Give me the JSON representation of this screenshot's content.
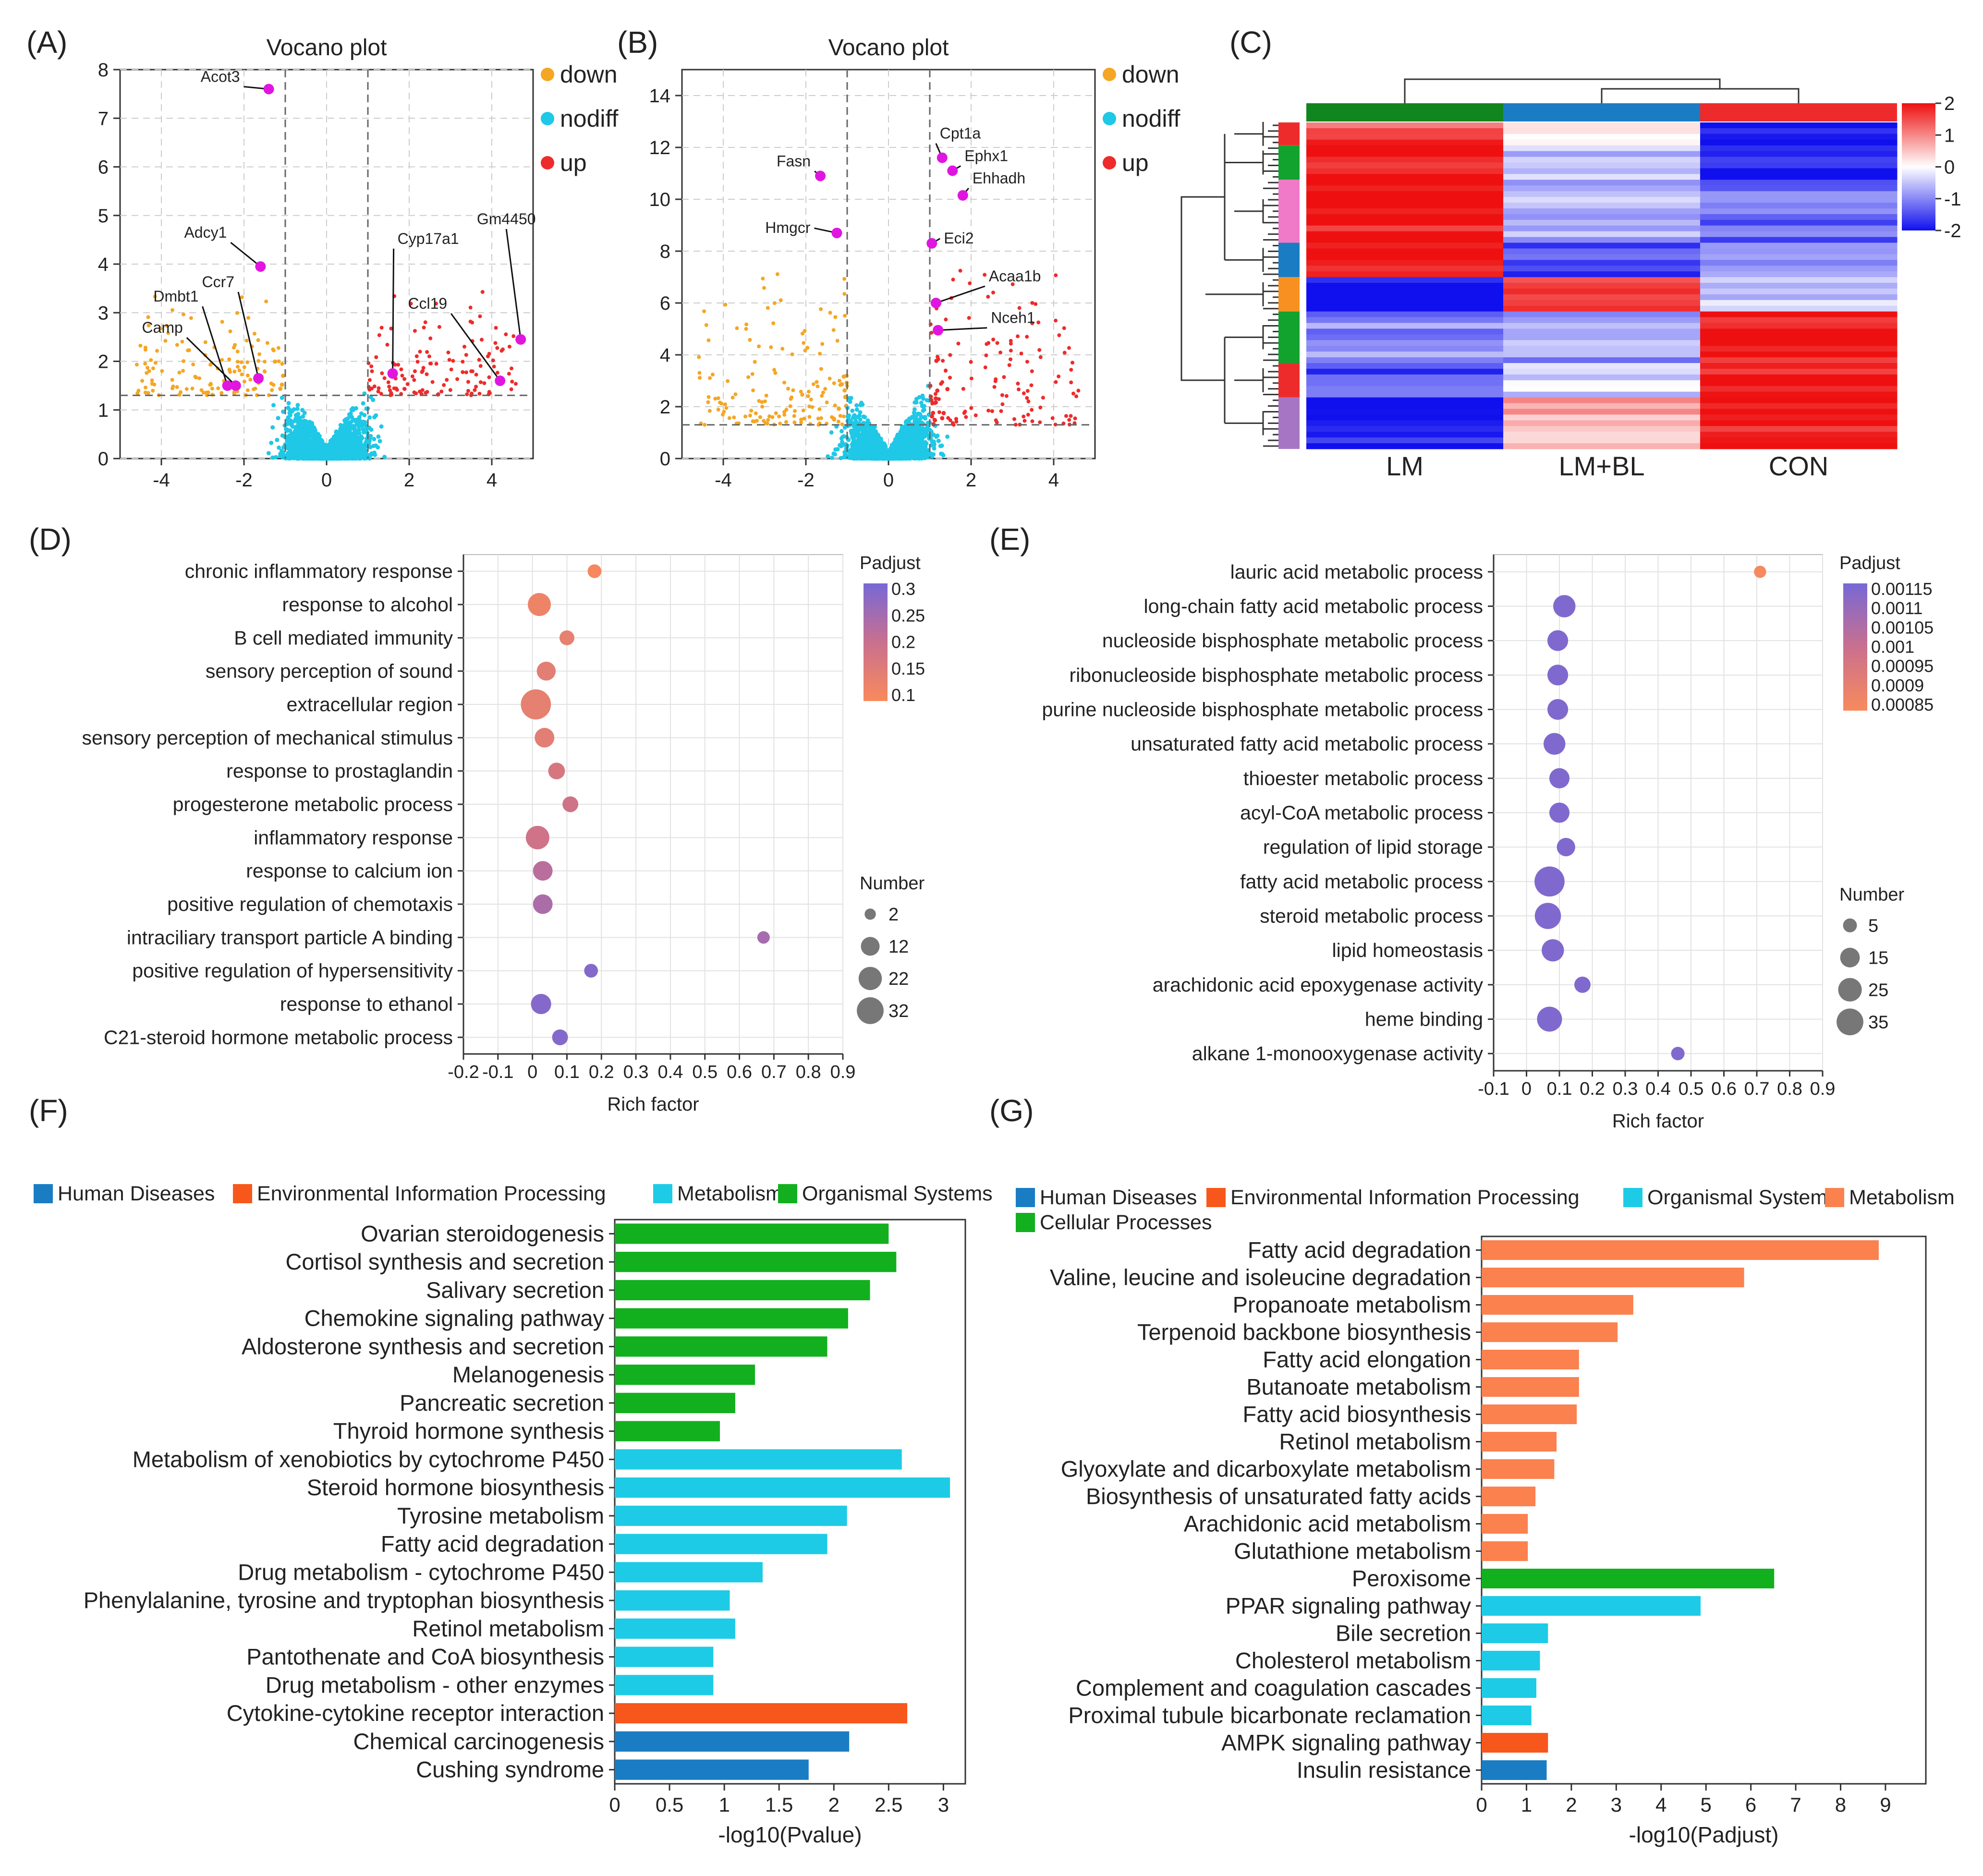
{
  "colors": {
    "down": "#f5a623",
    "nodiff": "#1ec8e6",
    "up": "#ee2b2b",
    "highlight": "#e016e0",
    "human": "#1a7dc4",
    "env": "#f8571c",
    "metab_f": "#1ecbe6",
    "org_f": "#12b01e",
    "metab_g": "#fb814e",
    "org_g": "#1ecbe6",
    "cell_g": "#12b01e",
    "dotLow": "#f98a5c",
    "dotMid": "#c9708e",
    "dotHigh": "#7768d6"
  },
  "panels": {
    "A": "(A)",
    "B": "(B)",
    "C": "(C)",
    "D": "(D)",
    "E": "(E)",
    "F": "(F)",
    "G": "(G)"
  },
  "chart_data": [
    {
      "id": "A",
      "type": "scatter",
      "title": "Vocano plot",
      "xlim": [
        -5,
        5
      ],
      "ylim": [
        0,
        8
      ],
      "xticks": [
        "-4",
        "-2",
        "0",
        "2",
        "4"
      ],
      "yticks": [
        "0",
        "1",
        "2",
        "3",
        "4",
        "5",
        "6",
        "7",
        "8"
      ],
      "vlines": [
        -1,
        1
      ],
      "hline": 1.3,
      "legend": [
        "down",
        "nodiff",
        "up"
      ],
      "genes": [
        {
          "label": "Acot3",
          "x": -1.4,
          "y": 7.6
        },
        {
          "label": "Adcy1",
          "x": -1.6,
          "y": 3.95
        },
        {
          "label": "Dmbt1",
          "x": -2.4,
          "y": 1.5
        },
        {
          "label": "Ccr7",
          "x": -1.65,
          "y": 1.65
        },
        {
          "label": "Camp",
          "x": -2.2,
          "y": 1.5
        },
        {
          "label": "Cyp17a1",
          "x": 1.6,
          "y": 1.75
        },
        {
          "label": "Ccl19",
          "x": 4.2,
          "y": 1.6
        },
        {
          "label": "Gm4450",
          "x": 4.7,
          "y": 2.45
        }
      ]
    },
    {
      "id": "B",
      "type": "scatter",
      "title": "Vocano plot",
      "xlim": [
        -5,
        5
      ],
      "ylim": [
        0,
        15
      ],
      "xticks": [
        "-4",
        "-2",
        "0",
        "2",
        "4"
      ],
      "yticks": [
        "0",
        "2",
        "4",
        "6",
        "8",
        "10",
        "12",
        "14"
      ],
      "vlines": [
        -1,
        1
      ],
      "hline": 1.3,
      "legend": [
        "down",
        "nodiff",
        "up"
      ],
      "genes": [
        {
          "label": "Fasn",
          "x": -1.65,
          "y": 10.9
        },
        {
          "label": "Hmgcr",
          "x": -1.25,
          "y": 8.7
        },
        {
          "label": "Cpt1a",
          "x": 1.3,
          "y": 11.6
        },
        {
          "label": "Ephx1",
          "x": 1.55,
          "y": 11.1
        },
        {
          "label": "Ehhadh",
          "x": 1.8,
          "y": 10.15
        },
        {
          "label": "Eci2",
          "x": 1.05,
          "y": 8.3
        },
        {
          "label": "Acaa1b",
          "x": 1.15,
          "y": 6.0
        },
        {
          "label": "Nceh1",
          "x": 1.2,
          "y": 4.95
        }
      ]
    },
    {
      "id": "C",
      "type": "heatmap",
      "columns": [
        "LM",
        "LM+BL",
        "CON"
      ],
      "scale_ticks": [
        "2",
        "1",
        "0",
        "-1",
        "-2"
      ],
      "blocks": [
        {
          "n": 4,
          "values": [
            1.5,
            -0.2,
            -2
          ],
          "cluster": "#ee2b2b"
        },
        {
          "n": 6,
          "values": [
            1.8,
            -0.4,
            -2
          ],
          "cluster": "#12a22e"
        },
        {
          "n": 11,
          "values": [
            2,
            -0.7,
            -1.3
          ],
          "cluster": "#f07ac8"
        },
        {
          "n": 6,
          "values": [
            2,
            -1.6,
            -0.8
          ],
          "cluster": "#1a7dc4"
        },
        {
          "n": 6,
          "values": [
            -2,
            1.6,
            -0.3
          ],
          "cluster": "#f79020"
        },
        {
          "n": 9,
          "values": [
            -1,
            -0.8,
            2
          ],
          "cluster": "#12a22e"
        },
        {
          "n": 6,
          "values": [
            -1.4,
            -0.4,
            2
          ],
          "cluster": "#ee2b2b"
        },
        {
          "n": 9,
          "values": [
            -1.9,
            0.6,
            2
          ],
          "cluster": "#a676c4"
        }
      ]
    },
    {
      "id": "D",
      "type": "scatter",
      "xlabel": "Rich factor",
      "xlim": [
        -0.2,
        0.9
      ],
      "xticks": [
        "-0.2",
        "-0.1",
        "0",
        "0.1",
        "0.2",
        "0.3",
        "0.4",
        "0.5",
        "0.6",
        "0.7",
        "0.8",
        "0.9"
      ],
      "legend_color_title": "Padjust",
      "color_ticks": [
        "0.3",
        "0.25",
        "0.2",
        "0.15",
        "0.1"
      ],
      "color_range": [
        0.07,
        0.32
      ],
      "legend_size_title": "Number",
      "size_ticks": [
        "2",
        "12",
        "22",
        "32"
      ],
      "size_values": [
        2,
        12,
        22,
        32
      ],
      "terms": [
        {
          "label": "chronic inflammatory response",
          "x": 0.18,
          "n": 3,
          "p": 0.08
        },
        {
          "label": "response to alcohol",
          "x": 0.02,
          "n": 16,
          "p": 0.1
        },
        {
          "label": "B cell mediated immunity",
          "x": 0.1,
          "n": 4,
          "p": 0.12
        },
        {
          "label": "sensory perception of sound",
          "x": 0.04,
          "n": 9,
          "p": 0.13
        },
        {
          "label": "extracellular region",
          "x": 0.01,
          "n": 33,
          "p": 0.12
        },
        {
          "label": "sensory perception of mechanical stimulus",
          "x": 0.035,
          "n": 10,
          "p": 0.13
        },
        {
          "label": "response to prostaglandin",
          "x": 0.07,
          "n": 6,
          "p": 0.16
        },
        {
          "label": "progesterone metabolic process",
          "x": 0.11,
          "n": 5,
          "p": 0.18
        },
        {
          "label": "inflammatory response",
          "x": 0.015,
          "n": 17,
          "p": 0.18
        },
        {
          "label": "response to calcium ion",
          "x": 0.03,
          "n": 10,
          "p": 0.22
        },
        {
          "label": "positive regulation of chemotaxis",
          "x": 0.03,
          "n": 10,
          "p": 0.24
        },
        {
          "label": "intraciliary transport particle A binding",
          "x": 0.67,
          "n": 2,
          "p": 0.25
        },
        {
          "label": "positive regulation of hypersensitivity",
          "x": 0.17,
          "n": 3,
          "p": 0.3
        },
        {
          "label": "response to ethanol",
          "x": 0.025,
          "n": 11,
          "p": 0.3
        },
        {
          "label": "C21-steroid hormone metabolic process",
          "x": 0.08,
          "n": 5,
          "p": 0.3
        }
      ]
    },
    {
      "id": "E",
      "type": "scatter",
      "xlabel": "Rich factor",
      "xlim": [
        -0.1,
        0.9
      ],
      "xticks": [
        "-0.1",
        "0",
        "0.1",
        "0.2",
        "0.3",
        "0.4",
        "0.5",
        "0.6",
        "0.7",
        "0.8",
        "0.9"
      ],
      "legend_color_title": "Padjust",
      "color_ticks": [
        "0.00115",
        "0.0011",
        "0.00105",
        "0.001",
        "0.00095",
        "0.0009",
        "0.00085"
      ],
      "color_range": [
        0.00082,
        0.00118
      ],
      "legend_size_title": "Number",
      "size_ticks": [
        "5",
        "15",
        "25",
        "35"
      ],
      "size_values": [
        5,
        15,
        25,
        35
      ],
      "terms": [
        {
          "label": "lauric acid metabolic process",
          "x": 0.71,
          "n": 2,
          "p": 0.00083
        },
        {
          "label": "long-chain fatty acid metabolic process",
          "x": 0.115,
          "n": 16,
          "p": 0.00116
        },
        {
          "label": "nucleoside bisphosphate metabolic process",
          "x": 0.095,
          "n": 13,
          "p": 0.00116
        },
        {
          "label": "ribonucleoside bisphosphate metabolic process",
          "x": 0.095,
          "n": 13,
          "p": 0.00116
        },
        {
          "label": "purine nucleoside bisphosphate metabolic process",
          "x": 0.095,
          "n": 13,
          "p": 0.00116
        },
        {
          "label": "unsaturated fatty acid metabolic process",
          "x": 0.085,
          "n": 15,
          "p": 0.00116
        },
        {
          "label": "thioester metabolic process",
          "x": 0.1,
          "n": 12,
          "p": 0.00116
        },
        {
          "label": "acyl-CoA metabolic process",
          "x": 0.1,
          "n": 12,
          "p": 0.00116
        },
        {
          "label": "regulation of lipid storage",
          "x": 0.12,
          "n": 9,
          "p": 0.00116
        },
        {
          "label": "fatty acid metabolic process",
          "x": 0.07,
          "n": 36,
          "p": 0.00116
        },
        {
          "label": "steroid metabolic process",
          "x": 0.065,
          "n": 25,
          "p": 0.00116
        },
        {
          "label": "lipid homeostasis",
          "x": 0.08,
          "n": 16,
          "p": 0.00116
        },
        {
          "label": "arachidonic acid epoxygenase activity",
          "x": 0.17,
          "n": 6,
          "p": 0.00116
        },
        {
          "label": "heme binding",
          "x": 0.07,
          "n": 22,
          "p": 0.00116
        },
        {
          "label": "alkane 1-monooxygenase activity",
          "x": 0.46,
          "n": 3,
          "p": 0.00116
        }
      ]
    },
    {
      "id": "F",
      "type": "bar",
      "orientation": "horizontal",
      "xlabel": "-log10(Pvalue)",
      "xlim": [
        0,
        3.2
      ],
      "xticks": [
        "0",
        "0.5",
        "1",
        "1.5",
        "2",
        "2.5",
        "3"
      ],
      "legend": [
        {
          "label": "Human Diseases",
          "color": "#1a7dc4"
        },
        {
          "label": "Environmental Information Processing",
          "color": "#f8571c"
        },
        {
          "label": "Metabolism",
          "color": "#1ecbe6"
        },
        {
          "label": "Organismal Systems",
          "color": "#12b01e"
        }
      ],
      "bars": [
        {
          "label": "Ovarian steroidogenesis",
          "value": 2.5,
          "color": "#12b01e"
        },
        {
          "label": "Cortisol synthesis and secretion",
          "value": 2.57,
          "color": "#12b01e"
        },
        {
          "label": "Salivary secretion",
          "value": 2.33,
          "color": "#12b01e"
        },
        {
          "label": "Chemokine signaling pathway",
          "value": 2.13,
          "color": "#12b01e"
        },
        {
          "label": "Aldosterone synthesis and secretion",
          "value": 1.94,
          "color": "#12b01e"
        },
        {
          "label": "Melanogenesis",
          "value": 1.28,
          "color": "#12b01e"
        },
        {
          "label": "Pancreatic secretion",
          "value": 1.1,
          "color": "#12b01e"
        },
        {
          "label": "Thyroid hormone synthesis",
          "value": 0.96,
          "color": "#12b01e"
        },
        {
          "label": "Metabolism of xenobiotics by cytochrome P450",
          "value": 2.62,
          "color": "#1ecbe6"
        },
        {
          "label": "Steroid hormone biosynthesis",
          "value": 3.06,
          "color": "#1ecbe6"
        },
        {
          "label": "Tyrosine metabolism",
          "value": 2.12,
          "color": "#1ecbe6"
        },
        {
          "label": "Fatty acid degradation",
          "value": 1.94,
          "color": "#1ecbe6"
        },
        {
          "label": "Drug metabolism - cytochrome P450",
          "value": 1.35,
          "color": "#1ecbe6"
        },
        {
          "label": "Phenylalanine, tyrosine and tryptophan biosynthesis",
          "value": 1.05,
          "color": "#1ecbe6"
        },
        {
          "label": "Retinol metabolism",
          "value": 1.1,
          "color": "#1ecbe6"
        },
        {
          "label": "Pantothenate and CoA biosynthesis",
          "value": 0.9,
          "color": "#1ecbe6"
        },
        {
          "label": "Drug metabolism - other enzymes",
          "value": 0.9,
          "color": "#1ecbe6"
        },
        {
          "label": "Cytokine-cytokine receptor interaction",
          "value": 2.67,
          "color": "#f8571c"
        },
        {
          "label": "Chemical carcinogenesis",
          "value": 2.14,
          "color": "#1a7dc4"
        },
        {
          "label": "Cushing syndrome",
          "value": 1.77,
          "color": "#1a7dc4"
        }
      ]
    },
    {
      "id": "G",
      "type": "bar",
      "orientation": "horizontal",
      "xlabel": "-log10(Padjust)",
      "xlim": [
        0,
        9.9
      ],
      "xticks": [
        "0",
        "1",
        "2",
        "3",
        "4",
        "5",
        "6",
        "7",
        "8",
        "9"
      ],
      "legend": [
        {
          "label": "Human Diseases",
          "color": "#1a7dc4"
        },
        {
          "label": "Environmental Information Processing",
          "color": "#f8571c"
        },
        {
          "label": "Organismal Systems",
          "color": "#1ecbe6"
        },
        {
          "label": "Metabolism",
          "color": "#fb814e"
        },
        {
          "label": "Cellular Processes",
          "color": "#12b01e"
        }
      ],
      "bars": [
        {
          "label": "Fatty acid degradation",
          "value": 8.85,
          "color": "#fb814e"
        },
        {
          "label": "Valine, leucine and isoleucine degradation",
          "value": 5.85,
          "color": "#fb814e"
        },
        {
          "label": "Propanoate metabolism",
          "value": 3.38,
          "color": "#fb814e"
        },
        {
          "label": "Terpenoid backbone biosynthesis",
          "value": 3.03,
          "color": "#fb814e"
        },
        {
          "label": "Fatty acid elongation",
          "value": 2.17,
          "color": "#fb814e"
        },
        {
          "label": "Butanoate metabolism",
          "value": 2.17,
          "color": "#fb814e"
        },
        {
          "label": "Fatty acid biosynthesis",
          "value": 2.12,
          "color": "#fb814e"
        },
        {
          "label": "Retinol metabolism",
          "value": 1.67,
          "color": "#fb814e"
        },
        {
          "label": "Glyoxylate and dicarboxylate metabolism",
          "value": 1.62,
          "color": "#fb814e"
        },
        {
          "label": "Biosynthesis of unsaturated fatty acids",
          "value": 1.2,
          "color": "#fb814e"
        },
        {
          "label": "Arachidonic acid metabolism",
          "value": 1.03,
          "color": "#fb814e"
        },
        {
          "label": "Glutathione metabolism",
          "value": 1.03,
          "color": "#fb814e"
        },
        {
          "label": "Peroxisome",
          "value": 6.52,
          "color": "#12b01e"
        },
        {
          "label": "PPAR signaling pathway",
          "value": 4.88,
          "color": "#1ecbe6"
        },
        {
          "label": "Bile secretion",
          "value": 1.48,
          "color": "#1ecbe6"
        },
        {
          "label": "Cholesterol metabolism",
          "value": 1.3,
          "color": "#1ecbe6"
        },
        {
          "label": "Complement and coagulation cascades",
          "value": 1.22,
          "color": "#1ecbe6"
        },
        {
          "label": "Proximal tubule bicarbonate reclamation",
          "value": 1.11,
          "color": "#1ecbe6"
        },
        {
          "label": "AMPK signaling pathway",
          "value": 1.48,
          "color": "#f8571c"
        },
        {
          "label": "Insulin resistance",
          "value": 1.45,
          "color": "#1a7dc4"
        }
      ]
    }
  ]
}
